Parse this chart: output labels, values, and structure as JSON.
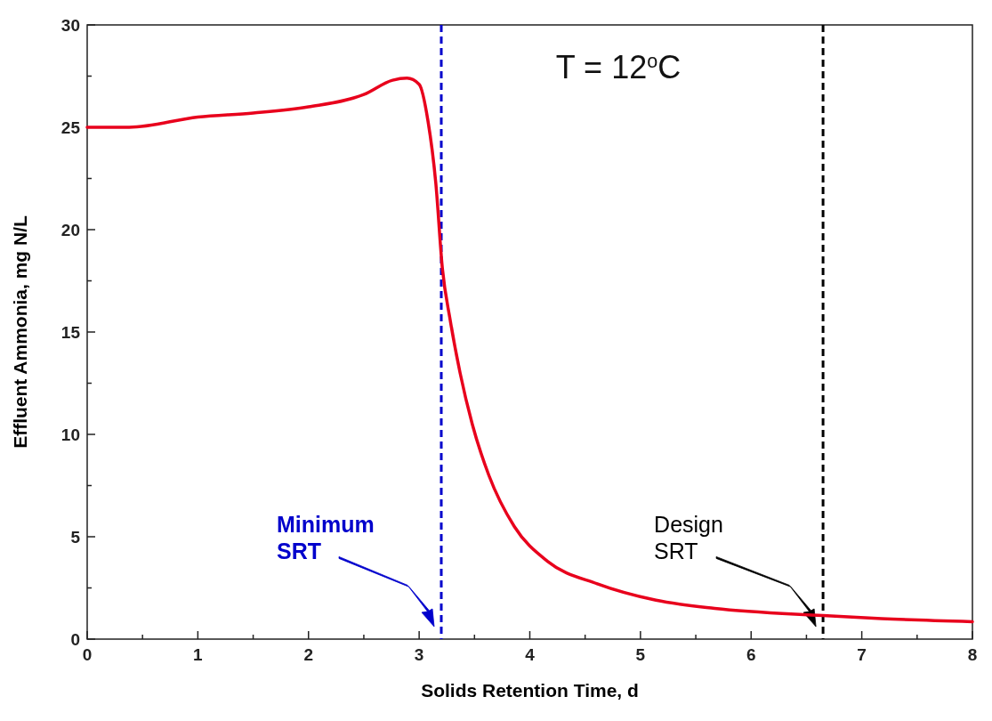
{
  "chart_data": {
    "type": "line",
    "title": "T = 12$^{o}$C",
    "xlabel": "Solids Retention Time, d",
    "ylabel": "Effluent Ammonia, mg N/L",
    "xlim": [
      0,
      8
    ],
    "ylim": [
      0,
      30
    ],
    "xticks": [
      0,
      {
        "value": 0.5,
        "label": null
      },
      1,
      {
        "value": 1.5,
        "label": null
      },
      2,
      {
        "value": 2.5,
        "label": null
      },
      3,
      {
        "value": 3.5,
        "label": null
      },
      4,
      {
        "value": 4.5,
        "label": null
      },
      5,
      {
        "value": 5.5,
        "label": null
      },
      6,
      {
        "value": 6.5,
        "label": null
      },
      7,
      {
        "value": 7.5,
        "label": null
      },
      8
    ],
    "yticks": [
      0,
      {
        "value": 2.5,
        "label": null
      },
      5,
      {
        "value": 7.5,
        "label": null
      },
      10,
      {
        "value": 12.5,
        "label": null
      },
      15,
      {
        "value": 17.5,
        "label": null
      },
      20,
      {
        "value": 22.5,
        "label": null
      },
      25,
      {
        "value": 27.5,
        "label": null
      },
      30
    ],
    "grid": false,
    "marker": "none",
    "line_style": "solid",
    "series": [
      {
        "color": "#e8001c",
        "x": [
          0,
          0.38,
          1,
          1.5,
          2,
          2.5,
          2.76,
          2.89,
          3.0,
          3.08,
          3.15,
          3.21,
          3.28,
          3.37,
          3.48,
          3.63,
          3.86,
          4.16,
          4.61,
          5.14,
          5.67,
          6.65,
          7.18,
          8
        ],
        "values": [
          25.0,
          25.0,
          25.5,
          25.7,
          26.0,
          26.6,
          27.3,
          27.4,
          27.1,
          25.3,
          22.3,
          18.1,
          15.6,
          13.0,
          10.5,
          8.0,
          5.5,
          3.8,
          2.7,
          1.9,
          1.5,
          1.15,
          1.0,
          0.85
        ]
      }
    ],
    "ref_lines": [
      {
        "axis": "x",
        "value": 3.2,
        "label": "Minimum SRT",
        "color": "#0000cc",
        "line_style": "dashed"
      },
      {
        "axis": "x",
        "value": 6.65,
        "label": "Design SRT",
        "color": "#000000",
        "line_style": "dashed"
      }
    ]
  }
}
